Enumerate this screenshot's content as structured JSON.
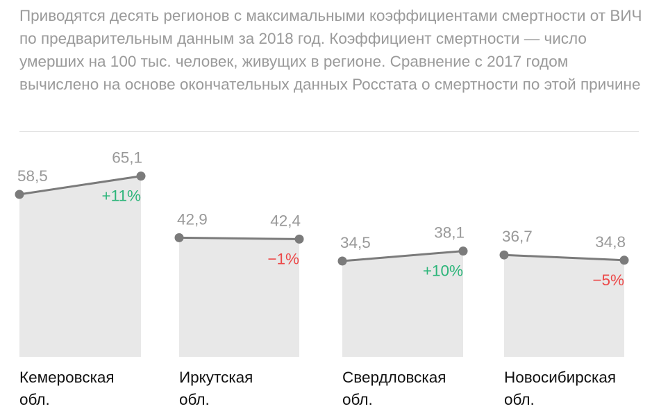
{
  "description": "Приводятся десять регионов с максимальными коэффициентами смертности от ВИЧ по предварительным данным за 2018 год. Коэффициент смертности — число умерших на 100 тыс. человек, живущих в регионе. Сравнение с 2017 годом вычислено на основе окончательных данных Росстата о смертности по этой причине",
  "chart_data": {
    "type": "line",
    "x": [
      "2017",
      "2018"
    ],
    "ylim": [
      0,
      70
    ],
    "grid": false,
    "series": [
      {
        "name": "Кемеровская обл.",
        "line1": "Кемеровская",
        "line2": "обл.",
        "values": [
          58.5,
          65.1
        ],
        "labels": [
          "58,5",
          "65,1"
        ],
        "change": "+11%",
        "trend": "up"
      },
      {
        "name": "Иркутская обл.",
        "line1": "Иркутская",
        "line2": "обл.",
        "values": [
          42.9,
          42.4
        ],
        "labels": [
          "42,9",
          "42,4"
        ],
        "change": "−1%",
        "trend": "down"
      },
      {
        "name": "Свердловская обл.",
        "line1": "Свердловская",
        "line2": "обл.",
        "values": [
          34.5,
          38.1
        ],
        "labels": [
          "34,5",
          "38,1"
        ],
        "change": "+10%",
        "trend": "up"
      },
      {
        "name": "Новосибирская обл.",
        "line1": "Новосибирская",
        "line2": "обл.",
        "values": [
          36.7,
          34.8
        ],
        "labels": [
          "36,7",
          "34,8"
        ],
        "change": "−5%",
        "trend": "down"
      }
    ]
  },
  "colors": {
    "up": "#2db57a",
    "down": "#ec4848",
    "line": "#7b7b7b",
    "fill": "#e8e8e8",
    "value_text": "#999999"
  }
}
